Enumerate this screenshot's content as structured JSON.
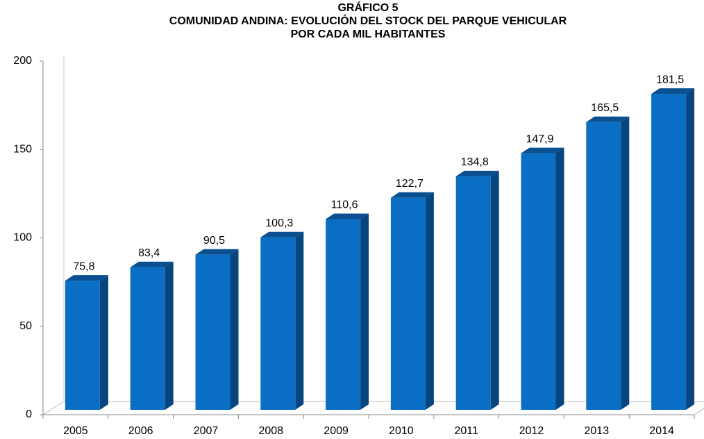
{
  "chart_data": {
    "type": "bar3d",
    "title": "GRÁFICO 5",
    "subtitle": [
      "COMUNIDAD ANDINA:  EVOLUCIÓN DEL STOCK DEL PARQUE VEHICULAR",
      "POR CADA MIL HABITANTES"
    ],
    "categories": [
      "2005",
      "2006",
      "2007",
      "2008",
      "2009",
      "2010",
      "2011",
      "2012",
      "2013",
      "2014"
    ],
    "values": [
      75.8,
      83.4,
      90.5,
      100.3,
      110.6,
      122.7,
      134.8,
      147.9,
      165.5,
      181.5
    ],
    "value_labels": [
      "75,8",
      "83,4",
      "90,5",
      "100,3",
      "110,6",
      "122,7",
      "134,8",
      "147,9",
      "165,5",
      "181,5"
    ],
    "color": "#0a6fc4",
    "ylim": [
      0,
      200
    ],
    "yticks": [
      0,
      50,
      100,
      150,
      200
    ]
  }
}
